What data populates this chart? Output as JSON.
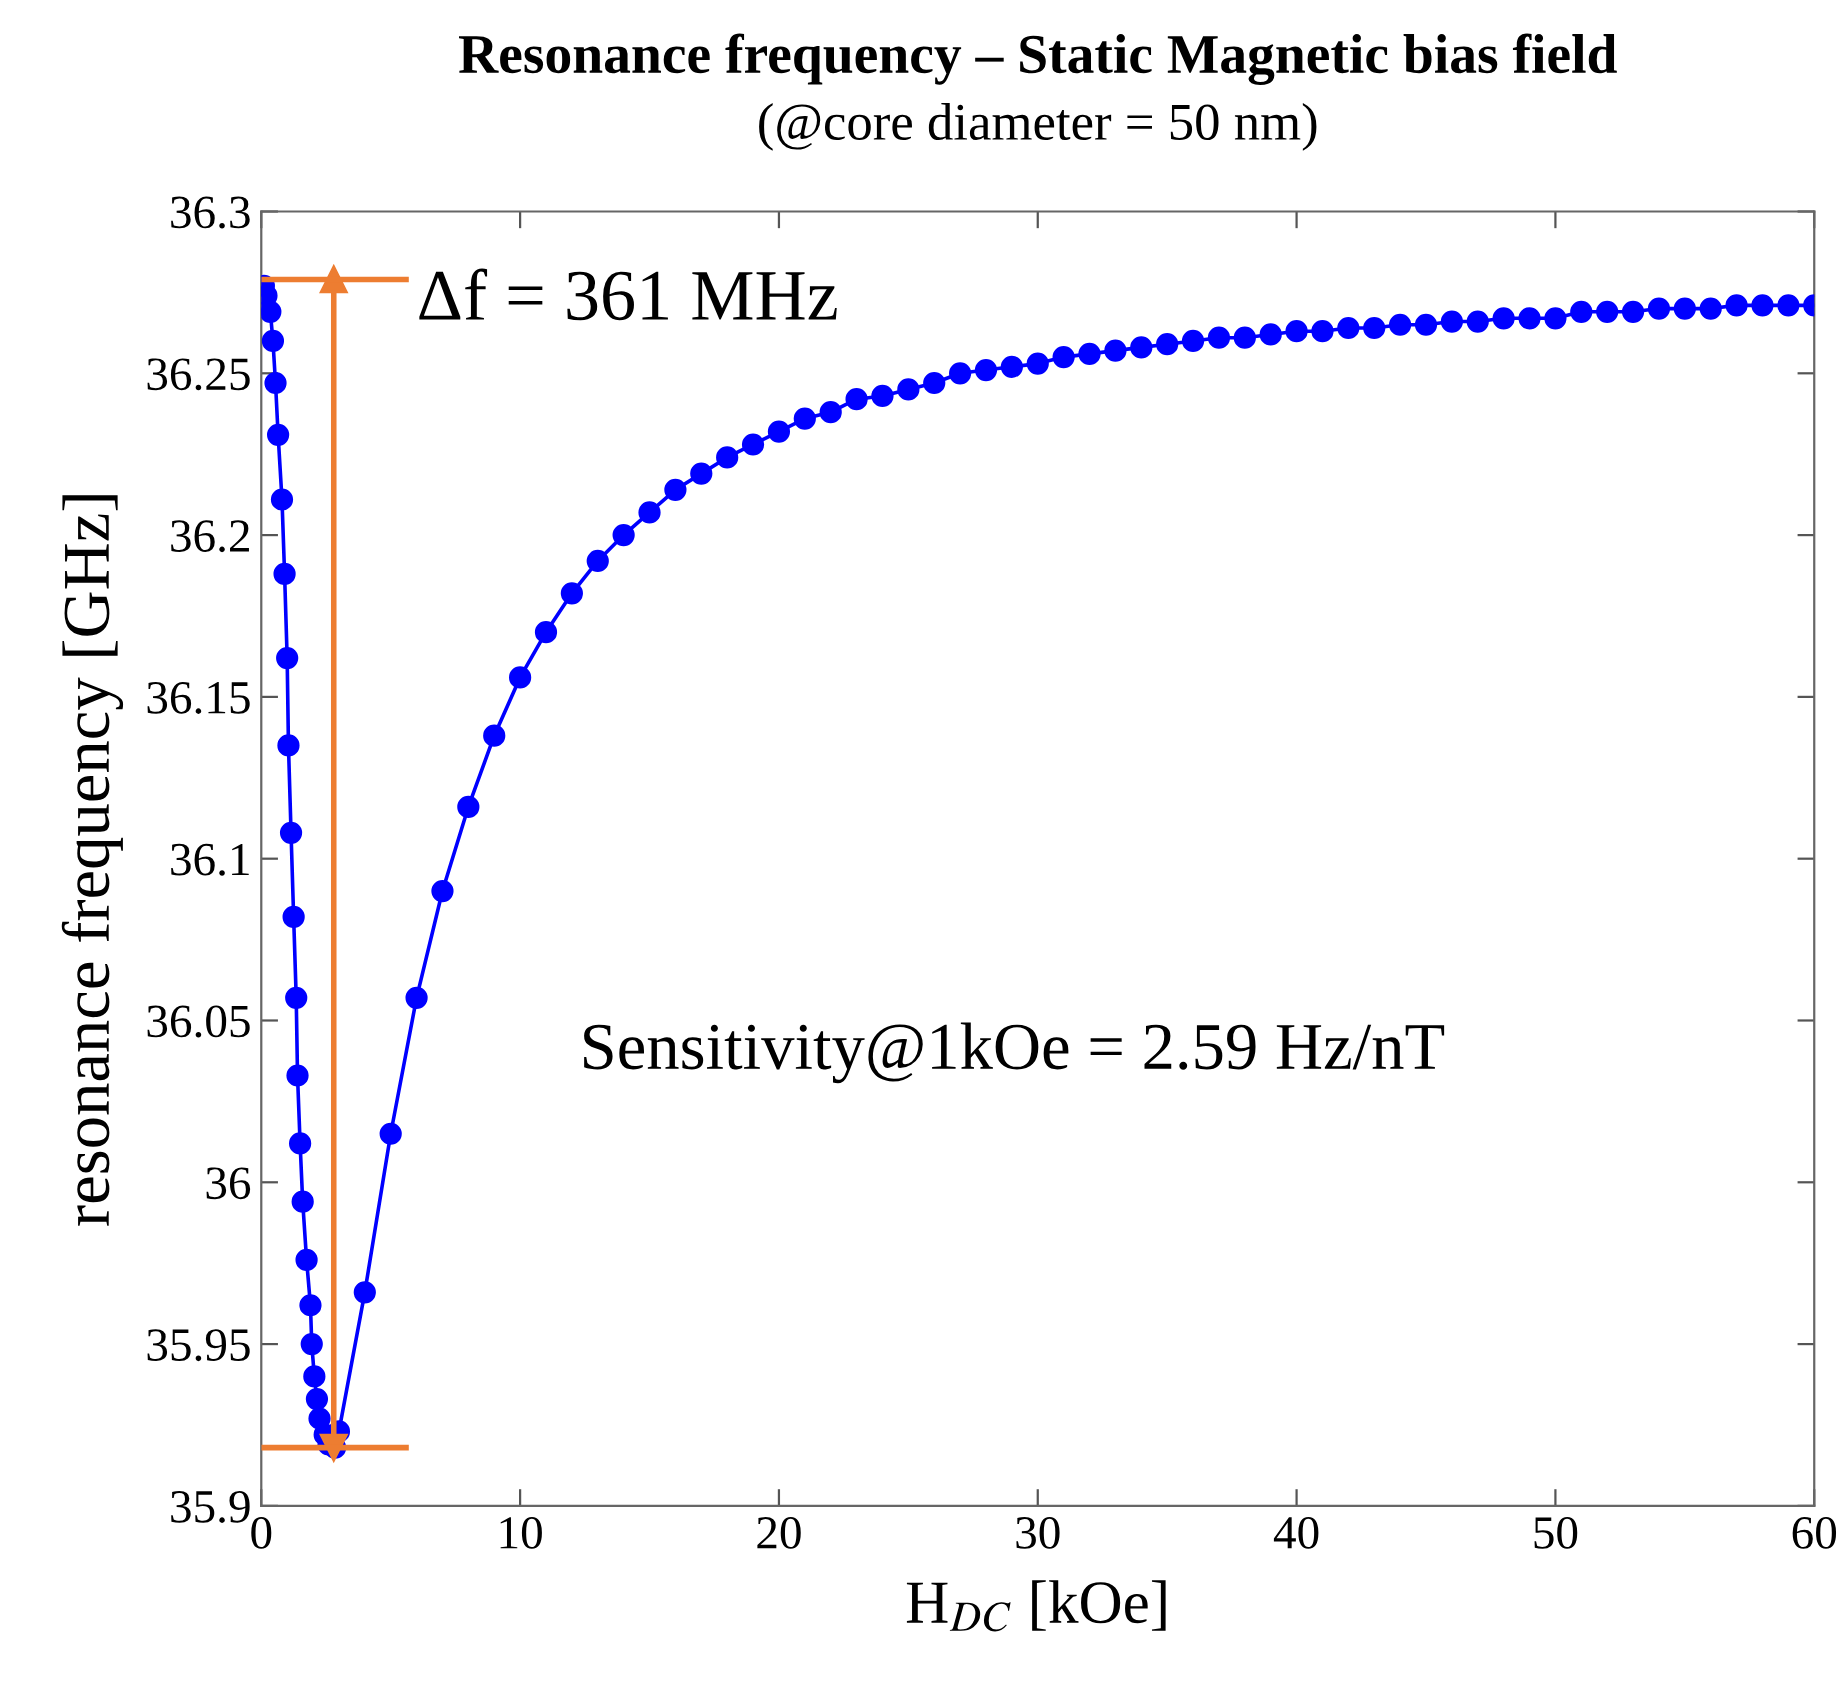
{
  "chart_data": {
    "type": "line",
    "title": "Resonance frequency – Static Magnetic bias field",
    "subtitle": "(@core diameter = 50 nm)",
    "xlabel": "H$_{DC}$ [kOe]",
    "ylabel": "resonance frequency [GHz]",
    "xlim": [
      0,
      60
    ],
    "xticks": [
      0,
      10,
      20,
      30,
      40,
      50,
      60
    ],
    "ylim": [
      35.9,
      36.3
    ],
    "yticks": [
      35.9,
      35.95,
      36,
      36.05,
      36.1,
      36.15,
      36.2,
      36.25,
      36.3
    ],
    "marker": "circle",
    "line_style": "solid",
    "grid": false,
    "series": [
      {
        "color": "#0000ff",
        "x": [
          0.1,
          0.2,
          0.35,
          0.45,
          0.55,
          0.65,
          0.8,
          0.9,
          1.0,
          1.05,
          1.15,
          1.25,
          1.35,
          1.4,
          1.5,
          1.6,
          1.75,
          1.9,
          1.95,
          2.05,
          2.15,
          2.25,
          2.45,
          2.6,
          2.85,
          3,
          4,
          5,
          6,
          7,
          8,
          9,
          10,
          11,
          12,
          13,
          14,
          15,
          16,
          17,
          18,
          19,
          20,
          21,
          22,
          23,
          24,
          25,
          26,
          27,
          28,
          29,
          30,
          31,
          32,
          33,
          34,
          35,
          36,
          37,
          38,
          39,
          40,
          41,
          42,
          43,
          44,
          45,
          46,
          47,
          48,
          49,
          50,
          51,
          52,
          53,
          54,
          55,
          56,
          57,
          58,
          59,
          60
        ],
        "values": [
          36.277,
          36.274,
          36.269,
          36.26,
          36.247,
          36.231,
          36.211,
          36.188,
          36.162,
          36.135,
          36.108,
          36.082,
          36.057,
          36.033,
          36.012,
          35.994,
          35.976,
          35.962,
          35.95,
          35.94,
          35.933,
          35.927,
          35.922,
          35.919,
          35.918,
          35.923,
          35.966,
          36.015,
          36.057,
          36.09,
          36.116,
          36.138,
          36.156,
          36.17,
          36.182,
          36.192,
          36.2,
          36.207,
          36.214,
          36.219,
          36.224,
          36.228,
          36.232,
          36.236,
          36.238,
          36.242,
          36.243,
          36.245,
          36.247,
          36.25,
          36.251,
          36.252,
          36.253,
          36.255,
          36.256,
          36.257,
          36.258,
          36.259,
          36.26,
          36.261,
          36.261,
          36.262,
          36.263,
          36.263,
          36.264,
          36.264,
          36.265,
          36.265,
          36.266,
          36.266,
          36.267,
          36.267,
          36.267,
          36.269,
          36.269,
          36.269,
          36.27,
          36.27,
          36.27,
          36.271,
          36.271,
          36.271,
          36.271
        ]
      },
      {
        "type": "line",
        "color": "#ed7d31",
        "marker": "triangle",
        "x": [
          2.8,
          2.8
        ],
        "values": [
          35.918,
          36.279
        ]
      }
    ],
    "ref_lines": [
      {
        "axis": "y",
        "value": 36.279,
        "color": "#ed7d31"
      },
      {
        "axis": "y",
        "value": 35.918,
        "color": "#ed7d31"
      }
    ],
    "annotations": [
      "Δf = 361 MHz",
      "Sensitivity@1kOe = 2.59 Hz/nT"
    ]
  }
}
